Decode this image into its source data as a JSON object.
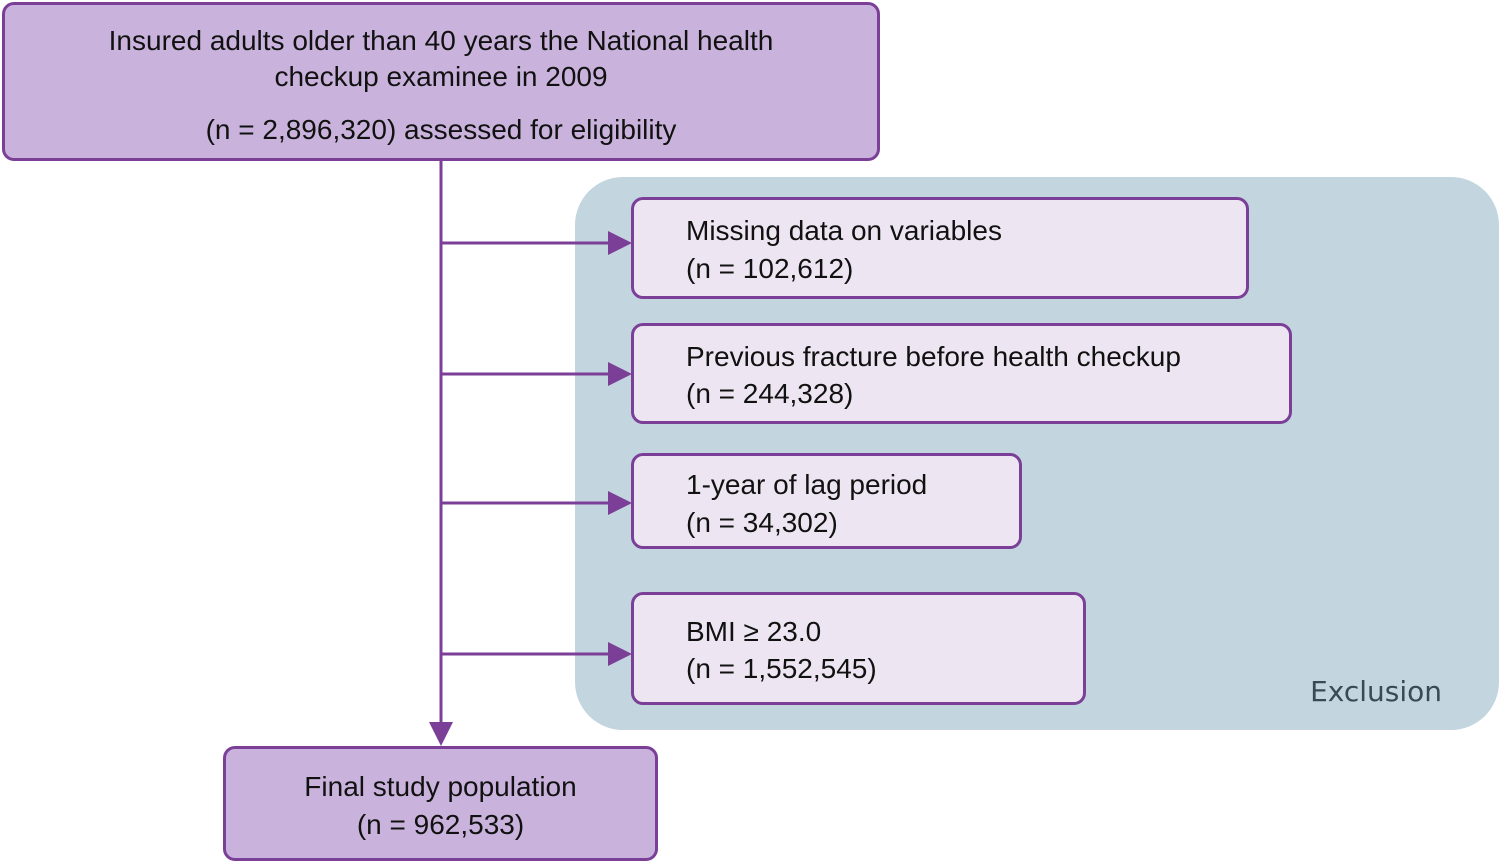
{
  "top_box": {
    "line1": "Insured adults older than 40 years the National health",
    "line2": "checkup examinee in 2009",
    "line3": "(n = 2,896,320) assessed for eligibility"
  },
  "exclusion": {
    "label": "Exclusion",
    "items": [
      {
        "label": "Missing data on variables",
        "count": "(n = 102,612)"
      },
      {
        "label": "Previous fracture before health checkup",
        "count": "(n = 244,328)"
      },
      {
        "label": "1-year of lag period",
        "count": "(n = 34,302)"
      },
      {
        "label": "BMI ≥ 23.0",
        "count": "(n = 1,552,545)"
      }
    ]
  },
  "final_box": {
    "label": "Final study population",
    "count": "(n = 962,533)"
  },
  "colors": {
    "box_fill": "#c9b3dc",
    "exclusion_box_fill": "#ede6f2",
    "border": "#7b3f98",
    "exclusion_panel": "#c3d5de"
  }
}
